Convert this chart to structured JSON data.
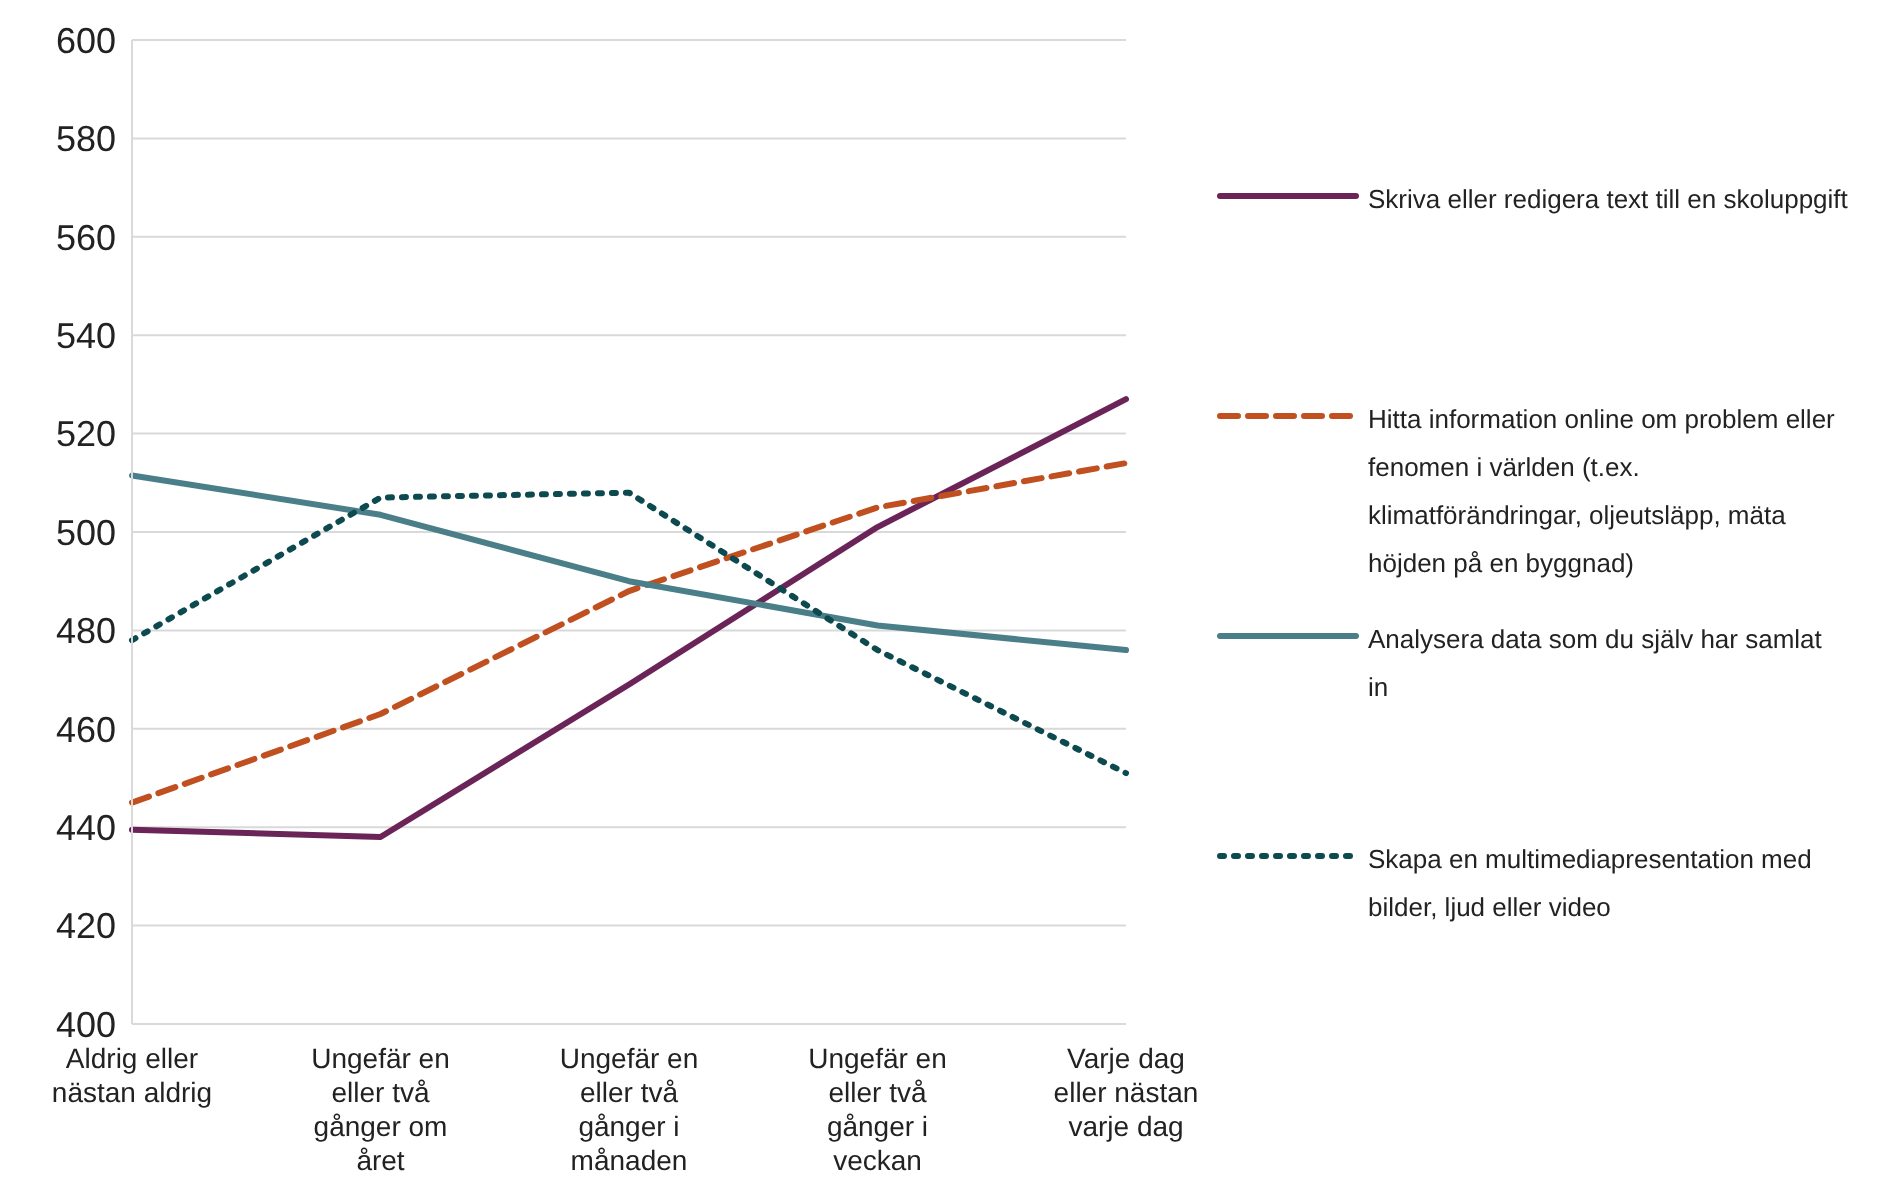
{
  "chart_data": {
    "type": "line",
    "categories": [
      "Aldrig eller nästan aldrig",
      "Ungefär en eller två gånger om året",
      "Ungefär en eller två gånger i månaden",
      "Ungefär en eller två gånger i veckan",
      "Varje dag eller nästan varje dag"
    ],
    "series": [
      {
        "name": "Skriva eller redigera text till en skoluppgift",
        "color": "#6b2458",
        "line_style": "solid",
        "values": [
          439.5,
          438,
          469,
          501,
          527
        ]
      },
      {
        "name": "Hitta information online om problem eller fenomen i världen (t.ex. klimatförändringar, oljeutsläpp, mäta höjden på en byggnad)",
        "color": "#c0501f",
        "line_style": "dashed",
        "values": [
          445,
          463,
          488,
          505,
          514
        ]
      },
      {
        "name": "Analysera data som du själv har samlat in",
        "color": "#4a7f89",
        "line_style": "solid",
        "values": [
          511.5,
          503.5,
          490,
          481,
          476
        ]
      },
      {
        "name": "Skapa en multimediapresentation med bilder, ljud eller video",
        "color": "#0d4a4f",
        "line_style": "dotted",
        "values": [
          478,
          507,
          508,
          476,
          451
        ]
      }
    ],
    "ylim": [
      400,
      600
    ],
    "yticks": [
      400,
      420,
      440,
      460,
      480,
      500,
      520,
      540,
      560,
      580,
      600
    ],
    "grid": "y",
    "legend": "right",
    "marker": "none"
  }
}
